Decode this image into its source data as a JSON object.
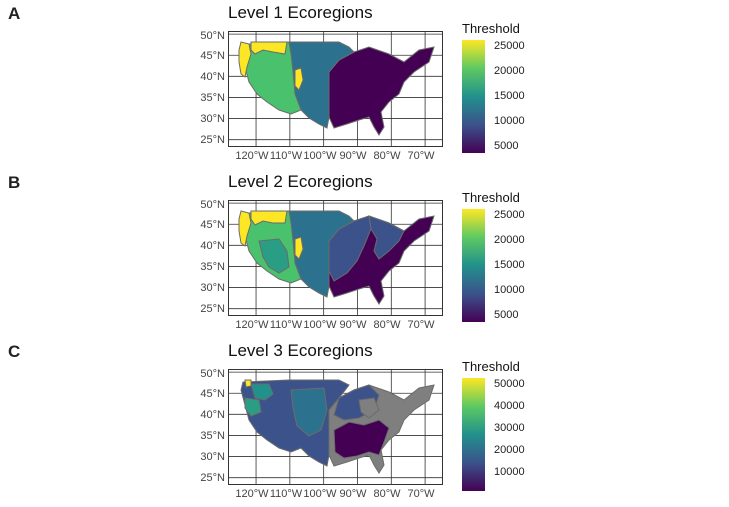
{
  "panels": [
    {
      "letter": "A",
      "title": "Level 1 Ecoregions",
      "legend_title": "Threshold",
      "legend_ticks": [
        "25000",
        "20000",
        "15000",
        "10000",
        "5000"
      ],
      "legend_tick_values": [
        25000,
        20000,
        15000,
        10000,
        5000
      ],
      "legend_range": [
        3500,
        27000
      ]
    },
    {
      "letter": "B",
      "title": "Level 2 Ecoregions",
      "legend_title": "Threshold",
      "legend_ticks": [
        "25000",
        "20000",
        "15000",
        "10000",
        "5000"
      ],
      "legend_tick_values": [
        25000,
        20000,
        15000,
        10000,
        5000
      ],
      "legend_range": [
        3500,
        27000
      ]
    },
    {
      "letter": "C",
      "title": "Level 3 Ecoregions",
      "legend_title": "Threshold",
      "legend_ticks": [
        "50000",
        "40000",
        "30000",
        "20000",
        "10000"
      ],
      "legend_tick_values": [
        50000,
        40000,
        30000,
        20000,
        10000
      ],
      "legend_range": [
        3000,
        56000
      ]
    }
  ],
  "axes": {
    "lat_labels": [
      "50°N",
      "45°N",
      "40°N",
      "35°N",
      "30°N",
      "25°N"
    ],
    "lat_values": [
      50,
      45,
      40,
      35,
      30,
      25
    ],
    "lon_labels": [
      "120°W",
      "110°W",
      "100°W",
      "90°W",
      "80°W",
      "70°W"
    ],
    "lon_values": [
      -120,
      -110,
      -100,
      -90,
      -80,
      -70
    ],
    "lat_range": [
      23.5,
      50.5
    ],
    "lon_range": [
      -128,
      -65
    ]
  },
  "colors": {
    "viridis_low": "#440154",
    "viridis_mid": "#21918c",
    "viridis_high": "#fde725",
    "grid": "#333333",
    "border": "#6b6b6b",
    "missing": "#7f7f7f"
  }
}
